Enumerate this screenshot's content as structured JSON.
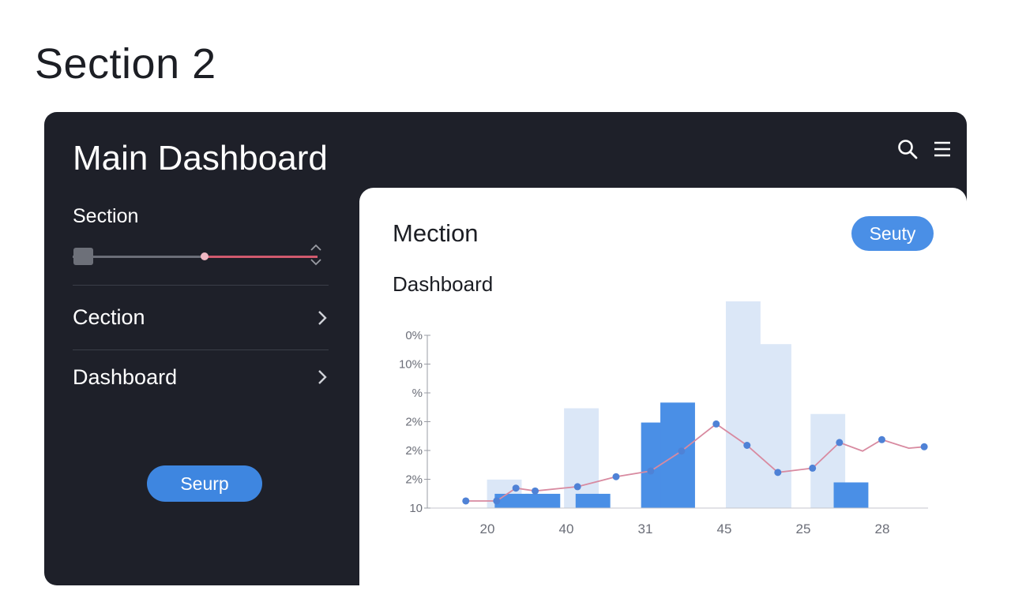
{
  "page": {
    "heading": "Section 2"
  },
  "panel": {
    "title": "Main Dashboard",
    "icons": [
      "search-icon",
      "menu-icon"
    ]
  },
  "sidebar": {
    "slider_label": "Section",
    "slider_value": 0.55,
    "items": [
      {
        "label": "Cection",
        "icon": "chevron-right-icon"
      },
      {
        "label": "Dashboard",
        "icon": "chevron-right-icon"
      }
    ],
    "button_label": "Seurp"
  },
  "card": {
    "title": "Mection",
    "badge_label": "Seuty",
    "subtitle": "Dashboard"
  },
  "colors": {
    "panel_bg": "#1e2029",
    "accent_blue": "#3e86e0",
    "bar_light": "#dbe7f7",
    "bar_dark": "#4a8fe6",
    "line": "#d88aa0",
    "slider_fill": "#d15a6e"
  },
  "chart_data": {
    "type": "bar",
    "y_tick_labels": [
      "0%",
      "10%",
      "%",
      "2%",
      "2%",
      "2%",
      "10"
    ],
    "x_tick_labels": [
      "20",
      "40",
      "31",
      "45",
      "25",
      "28"
    ],
    "bars_background": [
      {
        "x": 1.0,
        "value": 1.0
      },
      {
        "x": 2.0,
        "value": 3.5
      },
      {
        "x": 3.05,
        "value": 3.0
      },
      {
        "x": 4.1,
        "value": 7.25
      },
      {
        "x": 4.5,
        "value": 5.75
      },
      {
        "x": 5.2,
        "value": 3.3
      }
    ],
    "bars_foreground": [
      {
        "x": 1.1,
        "value": 0.5
      },
      {
        "x": 1.5,
        "value": 0.5
      },
      {
        "x": 2.15,
        "value": 0.5
      },
      {
        "x": 3.0,
        "value": 3.0
      },
      {
        "x": 3.25,
        "value": 3.7
      },
      {
        "x": 5.5,
        "value": 0.9
      }
    ],
    "line_points": [
      {
        "x": 0.5,
        "y": 0.25
      },
      {
        "x": 0.9,
        "y": 0.25
      },
      {
        "x": 1.15,
        "y": 0.7
      },
      {
        "x": 1.4,
        "y": 0.6
      },
      {
        "x": 1.95,
        "y": 0.75
      },
      {
        "x": 2.45,
        "y": 1.1
      },
      {
        "x": 2.9,
        "y": 1.3
      },
      {
        "x": 3.3,
        "y": 2.0
      },
      {
        "x": 3.75,
        "y": 2.95
      },
      {
        "x": 4.15,
        "y": 2.2
      },
      {
        "x": 4.55,
        "y": 1.25
      },
      {
        "x": 5.0,
        "y": 1.4
      },
      {
        "x": 5.35,
        "y": 2.3
      },
      {
        "x": 5.65,
        "y": 2.0
      },
      {
        "x": 5.9,
        "y": 2.4
      },
      {
        "x": 6.25,
        "y": 2.1
      },
      {
        "x": 6.45,
        "y": 2.15
      }
    ],
    "x_range": [
      0,
      6.5
    ],
    "y_range": [
      0,
      7.25
    ],
    "legend": "none",
    "grid": false
  }
}
